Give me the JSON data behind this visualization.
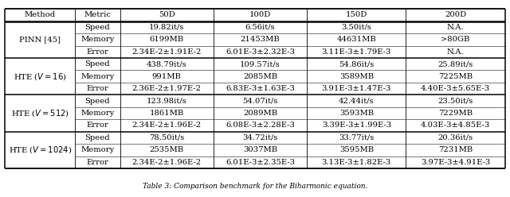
{
  "caption": "Table 3: Comparison benchmark for the Biharmonic equation.",
  "headers": [
    "Method",
    "Metric",
    "50D",
    "100D",
    "150D",
    "200D"
  ],
  "groups": [
    {
      "method": "PINN [45]",
      "rows": [
        [
          "Speed",
          "19.82it/s",
          "6.56it/s",
          "3.50it/s",
          "N.A."
        ],
        [
          "Memory",
          "6199MB",
          "21453MB",
          "44631MB",
          ">80GB"
        ],
        [
          "Error",
          "2.34E-2±1.91E-2",
          "6.01E-3±2.32E-3",
          "3.11E-3±1.79E-3",
          "N.A."
        ]
      ]
    },
    {
      "method": "HTE (V = 16)",
      "rows": [
        [
          "Speed",
          "438.79it/s",
          "109.57it/s",
          "54.86it/s",
          "25.89it/s"
        ],
        [
          "Memory",
          "991MB",
          "2085MB",
          "3589MB",
          "7225MB"
        ],
        [
          "Error",
          "2.36E-2±1.97E-2",
          "6.83E-3±1.63E-3",
          "3.91E-3±1.47E-3",
          "4.40E-3±5.65E-3"
        ]
      ]
    },
    {
      "method": "HTE (V = 512)",
      "rows": [
        [
          "Speed",
          "123.98it/s",
          "54.07it/s",
          "42.44it/s",
          "23.50it/s"
        ],
        [
          "Memory",
          "1861MB",
          "2089MB",
          "3593MB",
          "7229MB"
        ],
        [
          "Error",
          "2.34E-2±1.96E-2",
          "6.08E-3±2.28E-3",
          "3.39E-3±1.99E-3",
          "4.03E-3±4.85E-3"
        ]
      ]
    },
    {
      "method": "HTE (V = 1024)",
      "rows": [
        [
          "Speed",
          "78.50it/s",
          "34.72it/s",
          "33.77it/s",
          "20.36it/s"
        ],
        [
          "Memory",
          "2535MB",
          "3037MB",
          "3595MB",
          "7231MB"
        ],
        [
          "Error",
          "2.34E-2±1.96E-2",
          "6.01E-3±2.35E-3",
          "3.13E-3±1.82E-3",
          "3.97E-3±4.91E-3"
        ]
      ]
    }
  ],
  "method_display": [
    "PINN [45]",
    "HTE ($V = 16$)",
    "HTE ($V = 512$)",
    "HTE ($V = 1024$)"
  ],
  "bg_color": "#ffffff",
  "font_size": 7.2
}
